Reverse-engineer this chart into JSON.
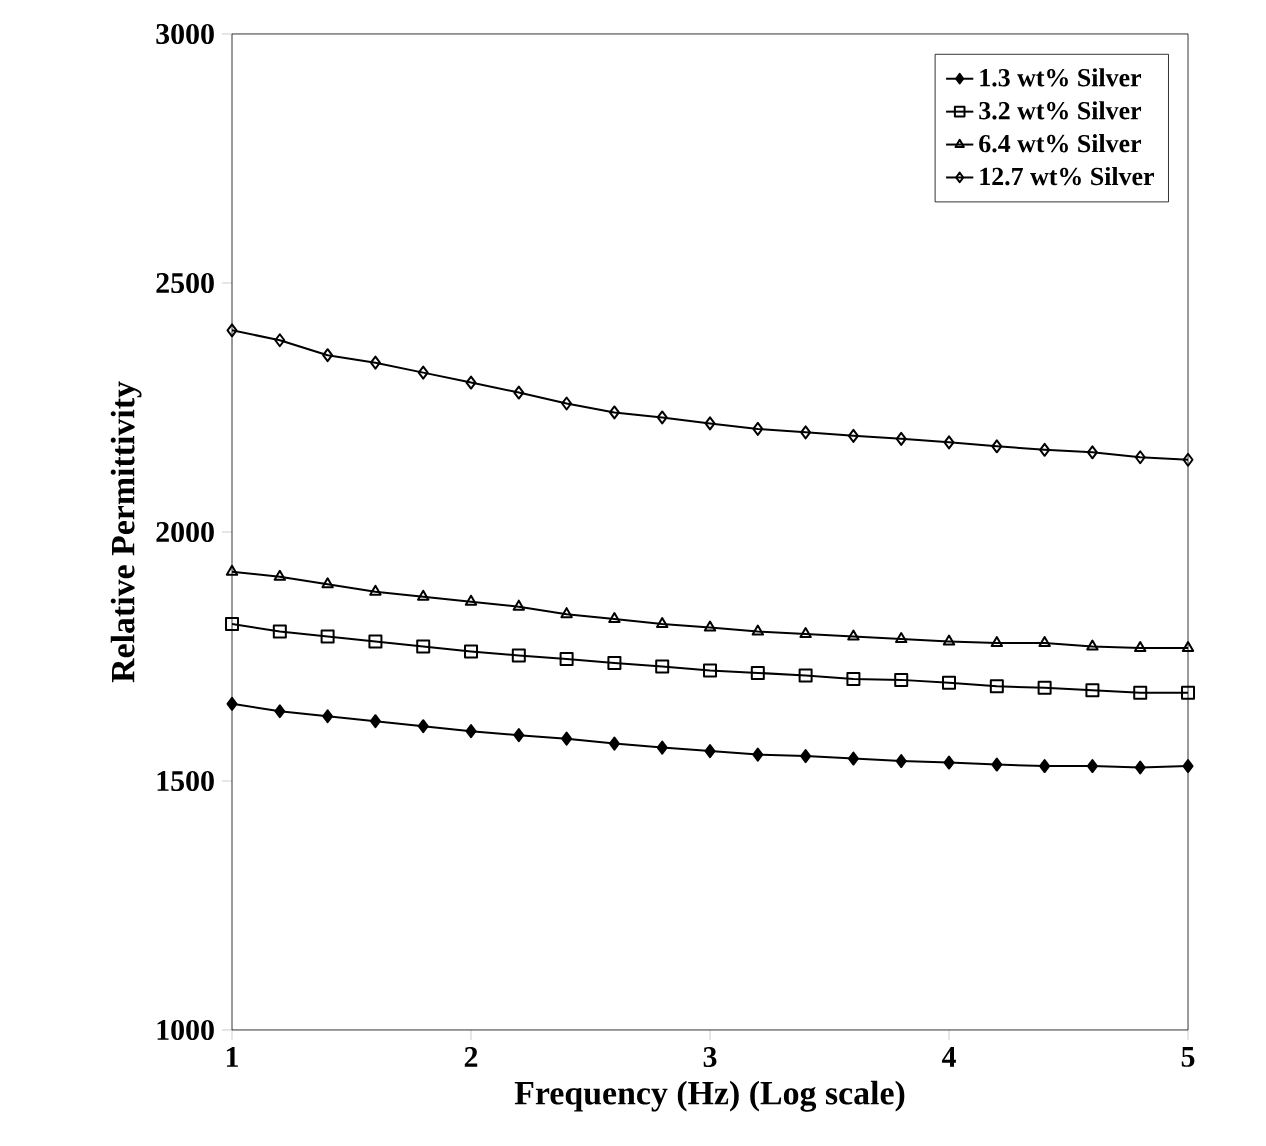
{
  "chart_data": {
    "type": "line",
    "xlabel": "Frequency (Hz) (Log scale)",
    "ylabel": "Relative Permittivity",
    "x": [
      1,
      1.2,
      1.4,
      1.6,
      1.8,
      2,
      2.2,
      2.4,
      2.6,
      2.8,
      3,
      3.2,
      3.4,
      3.6,
      3.8,
      4,
      4.2,
      4.4,
      4.6,
      4.8,
      5
    ],
    "xlim": [
      1,
      5
    ],
    "xticks": [
      1,
      2,
      3,
      4,
      5
    ],
    "ylim": [
      1000,
      3000
    ],
    "yticks": [
      1000,
      1500,
      2000,
      2500,
      3000
    ],
    "grid": false,
    "legend": "top right",
    "line_style": "solid",
    "series": [
      {
        "name": "1.3 wt% Silver",
        "color": "#000000",
        "marker": "diamond",
        "values": [
          1655,
          1640,
          1630,
          1620,
          1610,
          1600,
          1592,
          1585,
          1575,
          1567,
          1560,
          1553,
          1550,
          1545,
          1540,
          1537,
          1533,
          1530,
          1530,
          1527,
          1530
        ]
      },
      {
        "name": "3.2 wt% Silver",
        "color": "#000000",
        "marker": "square",
        "values": [
          1815,
          1800,
          1790,
          1780,
          1770,
          1760,
          1752,
          1745,
          1737,
          1730,
          1722,
          1717,
          1712,
          1705,
          1703,
          1697,
          1690,
          1687,
          1682,
          1677,
          1677
        ]
      },
      {
        "name": "6.4 wt% Silver",
        "color": "#000000",
        "marker": "triangle",
        "values": [
          1920,
          1910,
          1895,
          1880,
          1870,
          1860,
          1850,
          1835,
          1825,
          1815,
          1808,
          1800,
          1795,
          1790,
          1785,
          1780,
          1777,
          1777,
          1770,
          1767,
          1767
        ]
      },
      {
        "name": "12.7 wt% Silver",
        "color": "#000000",
        "marker": "diamond",
        "values": [
          2405,
          2385,
          2355,
          2340,
          2320,
          2300,
          2280,
          2258,
          2240,
          2230,
          2218,
          2207,
          2200,
          2193,
          2187,
          2180,
          2172,
          2165,
          2160,
          2150,
          2145
        ]
      }
    ]
  }
}
